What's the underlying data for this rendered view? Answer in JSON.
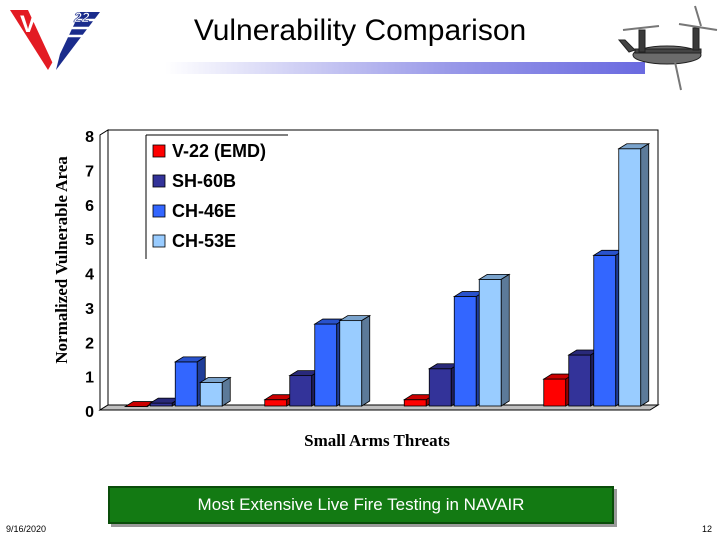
{
  "slide": {
    "title": "Vulnerability Comparison",
    "banner": "Most Extensive Live Fire Testing in NAVAIR",
    "date": "9/16/2020",
    "page": "12"
  },
  "logo": {
    "text": "V",
    "badge": "22",
    "colors": {
      "red": "#e31b23",
      "blue": "#1a2c8c"
    }
  },
  "chart_data": {
    "type": "bar",
    "categories": [
      "",
      "",
      "",
      ""
    ],
    "series": [
      {
        "name": "V-22 (EMD)",
        "color": "#ff0000",
        "values": [
          0.1,
          0.3,
          0.3,
          0.9
        ]
      },
      {
        "name": "SH-60B",
        "color": "#333399",
        "values": [
          0.2,
          1.0,
          1.2,
          1.6
        ]
      },
      {
        "name": "CH-46E",
        "color": "#3366ff",
        "values": [
          1.4,
          2.5,
          3.3,
          4.5
        ]
      },
      {
        "name": "CH-53E",
        "color": "#99ccff",
        "values": [
          0.8,
          2.6,
          3.8,
          7.6
        ]
      }
    ],
    "xlabel": "Small Arms Threats",
    "ylabel": "Normalized Vulnerable Area",
    "ylim": [
      0,
      8
    ],
    "yticks": [
      "0",
      "1",
      "2",
      "3",
      "4",
      "5",
      "6",
      "7",
      "8"
    ],
    "grid": true,
    "legend": "top-left"
  }
}
